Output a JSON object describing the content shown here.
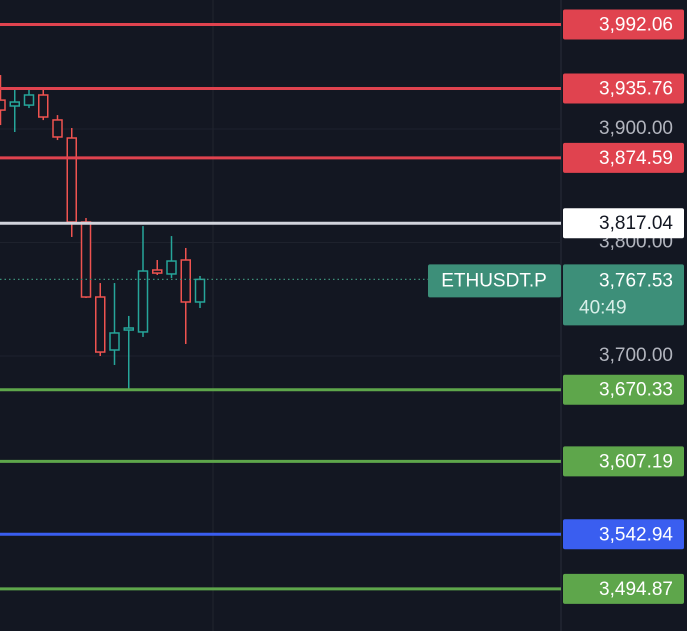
{
  "chart_data": {
    "type": "candlestick",
    "open": [
      3925.5,
      3920.3,
      3921.1,
      3930.0,
      3908.0,
      3892.1,
      3818.1,
      3752.0,
      3705.3,
      3722.9,
      3721.2,
      3775.8,
      3772.3,
      3784.6,
      3747.6
    ],
    "high": [
      3947.6,
      3934.4,
      3934.4,
      3934.4,
      3912.3,
      3900.9,
      3821.6,
      3764.3,
      3764.3,
      3735.3,
      3814.5,
      3784.6,
      3805.7,
      3795.2,
      3770.5
    ],
    "low": [
      3903.5,
      3897.4,
      3918.5,
      3907.9,
      3890.3,
      3804.9,
      3751.1,
      3700.0,
      3692.1,
      3670.1,
      3716.8,
      3771.4,
      3768.7,
      3710.6,
      3742.3
    ],
    "close": [
      3916.7,
      3923.8,
      3930.0,
      3910.6,
      3893.0,
      3818.1,
      3752.0,
      3703.5,
      3720.3,
      3724.7,
      3774.9,
      3773.1,
      3783.7,
      3747.6,
      3767.53
    ],
    "up_color": "#26a69a",
    "down_color": "#ef5350",
    "ylim": [
      3457.7,
      4013.7
    ],
    "yticks": [
      {
        "value": 3900,
        "label": "3,900.00"
      },
      {
        "value": 3800,
        "label": "3,800.00"
      },
      {
        "value": 3700,
        "label": "3,700.00"
      }
    ],
    "grid": true,
    "levels": {
      "values": [
        3992.06,
        3935.76,
        3874.59,
        3817.04,
        3670.33,
        3607.19,
        3542.94,
        3494.87
      ],
      "value_labels": [
        "3,992.06",
        "3,935.76",
        "3,874.59",
        "3,817.04",
        "3,670.33",
        "3,607.19",
        "3,542.94",
        "3,494.87"
      ],
      "colors": [
        "#e0434f",
        "#e0434f",
        "#e0434f",
        "#ffffff",
        "#5ea64b",
        "#5ea64b",
        "#3a5ef0",
        "#5ea64b"
      ]
    },
    "last_price": {
      "symbol": "ETHUSDT.P",
      "value": 3767.53,
      "value_label": "3,767.53",
      "countdown": "40:49",
      "color": "#3d8f79"
    }
  }
}
